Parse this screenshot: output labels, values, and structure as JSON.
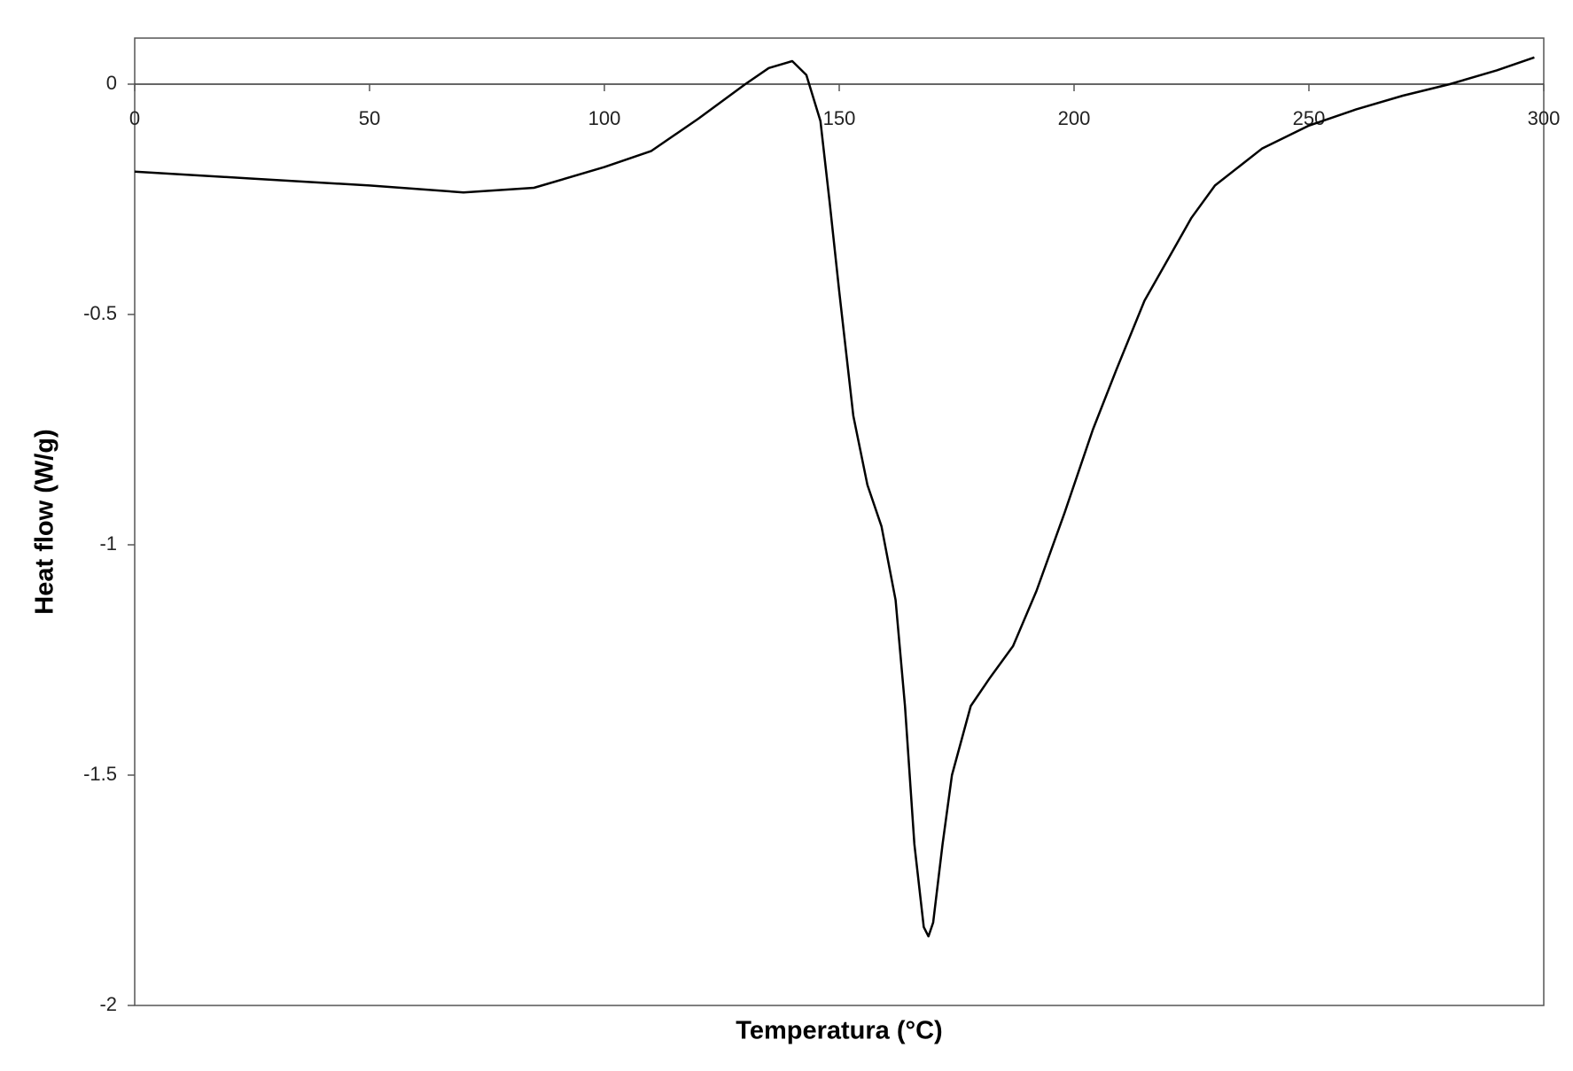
{
  "chart_data": {
    "type": "line",
    "xlabel": "Temperatura (°C)",
    "ylabel": "Heat flow (W/g)",
    "x": [
      0,
      25,
      50,
      70,
      85,
      100,
      110,
      120,
      130,
      135,
      140,
      143,
      146,
      148,
      150,
      153,
      156,
      159,
      162,
      164,
      166,
      168,
      169,
      170,
      172,
      174,
      178,
      182,
      187,
      192,
      198,
      204,
      209,
      215,
      220,
      225,
      230,
      240,
      250,
      260,
      270,
      280,
      290,
      298
    ],
    "series": [
      {
        "color": "#000000",
        "values": [
          -0.19,
          -0.205,
          -0.22,
          -0.235,
          -0.225,
          -0.18,
          -0.145,
          -0.075,
          0.0,
          0.035,
          0.05,
          0.02,
          -0.08,
          -0.26,
          -0.45,
          -0.72,
          -0.87,
          -0.96,
          -1.12,
          -1.35,
          -1.65,
          -1.83,
          -1.85,
          -1.82,
          -1.65,
          -1.5,
          -1.35,
          -1.29,
          -1.22,
          -1.1,
          -0.93,
          -0.75,
          -0.62,
          -0.47,
          -0.38,
          -0.29,
          -0.22,
          -0.14,
          -0.09,
          -0.055,
          -0.025,
          0.0,
          0.03,
          0.058
        ]
      }
    ],
    "xlim": [
      0,
      300
    ],
    "xticks": [
      0,
      50,
      100,
      150,
      200,
      250,
      300
    ],
    "ylim": [
      -2,
      0.1
    ],
    "yticks": [
      0,
      -0.5,
      -1,
      -1.5,
      -2
    ]
  }
}
